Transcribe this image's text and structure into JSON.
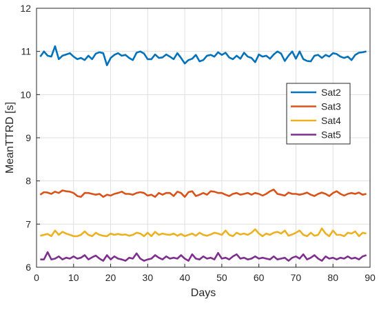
{
  "chart_data": {
    "type": "line",
    "xlabel": "Days",
    "ylabel": "MeanTTRD [s]",
    "xlim": [
      0,
      90
    ],
    "ylim": [
      6,
      12
    ],
    "xticks": [
      0,
      10,
      20,
      30,
      40,
      50,
      60,
      70,
      80,
      90
    ],
    "yticks": [
      6,
      7,
      8,
      9,
      10,
      11,
      12
    ],
    "grid": true,
    "legend_position": "right",
    "series": [
      {
        "name": "Sat2",
        "color": "#0072BD",
        "x": [
          1,
          2,
          3,
          4,
          5,
          6,
          7,
          8,
          9,
          10,
          11,
          12,
          13,
          14,
          15,
          16,
          17,
          18,
          19,
          20,
          21,
          22,
          23,
          24,
          25,
          26,
          27,
          28,
          29,
          30,
          31,
          32,
          33,
          34,
          35,
          36,
          37,
          38,
          39,
          40,
          41,
          42,
          43,
          44,
          45,
          46,
          47,
          48,
          49,
          50,
          51,
          52,
          53,
          54,
          55,
          56,
          57,
          58,
          59,
          60,
          61,
          62,
          63,
          64,
          65,
          66,
          67,
          68,
          69,
          70,
          71,
          72,
          73,
          74,
          75,
          76,
          77,
          78,
          79,
          80,
          81,
          82,
          83,
          84,
          85,
          86,
          87,
          88,
          89
        ],
        "values": [
          10.88,
          11.0,
          10.9,
          10.88,
          11.12,
          10.82,
          10.9,
          10.93,
          10.96,
          10.88,
          10.82,
          10.85,
          10.8,
          10.9,
          10.82,
          10.95,
          10.98,
          10.96,
          10.68,
          10.85,
          10.92,
          10.96,
          10.9,
          10.92,
          10.85,
          10.8,
          10.97,
          11.0,
          10.95,
          10.82,
          10.82,
          10.93,
          10.85,
          10.86,
          10.93,
          10.88,
          10.82,
          10.96,
          10.85,
          10.72,
          10.8,
          10.83,
          10.92,
          10.77,
          10.8,
          10.9,
          10.92,
          10.88,
          10.98,
          10.92,
          10.97,
          10.86,
          10.82,
          10.9,
          10.83,
          10.97,
          10.88,
          10.85,
          10.75,
          10.93,
          10.88,
          10.9,
          10.83,
          10.93,
          11.0,
          10.95,
          10.78,
          10.9,
          11.0,
          10.83,
          11.0,
          10.82,
          10.78,
          10.77,
          10.9,
          10.92,
          10.85,
          10.92,
          10.88,
          10.96,
          10.94,
          10.88,
          10.85,
          10.88,
          10.8,
          10.92,
          10.97,
          10.98,
          11.0
        ]
      },
      {
        "name": "Sat3",
        "color": "#D95319",
        "x": [
          1,
          2,
          3,
          4,
          5,
          6,
          7,
          8,
          9,
          10,
          11,
          12,
          13,
          14,
          15,
          16,
          17,
          18,
          19,
          20,
          21,
          22,
          23,
          24,
          25,
          26,
          27,
          28,
          29,
          30,
          31,
          32,
          33,
          34,
          35,
          36,
          37,
          38,
          39,
          40,
          41,
          42,
          43,
          44,
          45,
          46,
          47,
          48,
          49,
          50,
          51,
          52,
          53,
          54,
          55,
          56,
          57,
          58,
          59,
          60,
          61,
          62,
          63,
          64,
          65,
          66,
          67,
          68,
          69,
          70,
          71,
          72,
          73,
          74,
          75,
          76,
          77,
          78,
          79,
          80,
          81,
          82,
          83,
          84,
          85,
          86,
          87,
          88,
          89
        ],
        "values": [
          7.68,
          7.74,
          7.73,
          7.7,
          7.75,
          7.72,
          7.78,
          7.76,
          7.75,
          7.72,
          7.65,
          7.63,
          7.72,
          7.72,
          7.7,
          7.68,
          7.7,
          7.63,
          7.68,
          7.66,
          7.7,
          7.72,
          7.75,
          7.7,
          7.7,
          7.68,
          7.72,
          7.74,
          7.72,
          7.66,
          7.68,
          7.63,
          7.72,
          7.68,
          7.72,
          7.72,
          7.65,
          7.75,
          7.72,
          7.63,
          7.74,
          7.76,
          7.65,
          7.68,
          7.72,
          7.68,
          7.76,
          7.75,
          7.72,
          7.72,
          7.68,
          7.65,
          7.7,
          7.72,
          7.68,
          7.7,
          7.72,
          7.68,
          7.72,
          7.7,
          7.66,
          7.7,
          7.76,
          7.8,
          7.7,
          7.68,
          7.66,
          7.73,
          7.7,
          7.7,
          7.68,
          7.7,
          7.73,
          7.68,
          7.65,
          7.7,
          7.73,
          7.7,
          7.65,
          7.72,
          7.76,
          7.7,
          7.66,
          7.7,
          7.72,
          7.7,
          7.73,
          7.68,
          7.7
        ]
      },
      {
        "name": "Sat4",
        "color": "#EDB120",
        "x": [
          1,
          2,
          3,
          4,
          5,
          6,
          7,
          8,
          9,
          10,
          11,
          12,
          13,
          14,
          15,
          16,
          17,
          18,
          19,
          20,
          21,
          22,
          23,
          24,
          25,
          26,
          27,
          28,
          29,
          30,
          31,
          32,
          33,
          34,
          35,
          36,
          37,
          38,
          39,
          40,
          41,
          42,
          43,
          44,
          45,
          46,
          47,
          48,
          49,
          50,
          51,
          52,
          53,
          54,
          55,
          56,
          57,
          58,
          59,
          60,
          61,
          62,
          63,
          64,
          65,
          66,
          67,
          68,
          69,
          70,
          71,
          72,
          73,
          74,
          75,
          76,
          77,
          78,
          79,
          80,
          81,
          82,
          83,
          84,
          85,
          86,
          87,
          88,
          89
        ],
        "values": [
          6.73,
          6.75,
          6.77,
          6.72,
          6.85,
          6.75,
          6.82,
          6.78,
          6.75,
          6.72,
          6.72,
          6.75,
          6.83,
          6.75,
          6.72,
          6.8,
          6.75,
          6.73,
          6.72,
          6.78,
          6.75,
          6.77,
          6.75,
          6.76,
          6.73,
          6.75,
          6.8,
          6.78,
          6.72,
          6.8,
          6.72,
          6.82,
          6.75,
          6.78,
          6.76,
          6.75,
          6.78,
          6.73,
          6.77,
          6.72,
          6.75,
          6.78,
          6.73,
          6.8,
          6.75,
          6.73,
          6.76,
          6.8,
          6.78,
          6.75,
          6.85,
          6.75,
          6.72,
          6.8,
          6.76,
          6.78,
          6.75,
          6.8,
          6.88,
          6.78,
          6.72,
          6.78,
          6.75,
          6.8,
          6.82,
          6.78,
          6.85,
          6.73,
          6.76,
          6.8,
          6.85,
          6.75,
          6.72,
          6.8,
          6.73,
          6.75,
          6.9,
          6.78,
          6.72,
          6.85,
          6.75,
          6.75,
          6.72,
          6.8,
          6.78,
          6.83,
          6.72,
          6.8,
          6.78
        ]
      },
      {
        "name": "Sat5",
        "color": "#7E2F8E",
        "x": [
          1,
          2,
          3,
          4,
          5,
          6,
          7,
          8,
          9,
          10,
          11,
          12,
          13,
          14,
          15,
          16,
          17,
          18,
          19,
          20,
          21,
          22,
          23,
          24,
          25,
          26,
          27,
          28,
          29,
          30,
          31,
          32,
          33,
          34,
          35,
          36,
          37,
          38,
          39,
          40,
          41,
          42,
          43,
          44,
          45,
          46,
          47,
          48,
          49,
          50,
          51,
          52,
          53,
          54,
          55,
          56,
          57,
          58,
          59,
          60,
          61,
          62,
          63,
          64,
          65,
          66,
          67,
          68,
          69,
          70,
          71,
          72,
          73,
          74,
          75,
          76,
          77,
          78,
          79,
          80,
          81,
          82,
          83,
          84,
          85,
          86,
          87,
          88,
          89
        ],
        "values": [
          6.18,
          6.18,
          6.35,
          6.18,
          6.2,
          6.25,
          6.18,
          6.22,
          6.2,
          6.25,
          6.2,
          6.22,
          6.28,
          6.18,
          6.23,
          6.27,
          6.2,
          6.15,
          6.28,
          6.18,
          6.25,
          6.2,
          6.18,
          6.15,
          6.22,
          6.2,
          6.32,
          6.2,
          6.15,
          6.18,
          6.2,
          6.28,
          6.22,
          6.18,
          6.25,
          6.2,
          6.22,
          6.2,
          6.28,
          6.2,
          6.15,
          6.3,
          6.2,
          6.18,
          6.25,
          6.2,
          6.22,
          6.18,
          6.33,
          6.2,
          6.22,
          6.18,
          6.25,
          6.3,
          6.2,
          6.22,
          6.18,
          6.2,
          6.25,
          6.2,
          6.22,
          6.2,
          6.18,
          6.25,
          6.18,
          6.2,
          6.22,
          6.15,
          6.22,
          6.25,
          6.2,
          6.3,
          6.18,
          6.22,
          6.28,
          6.2,
          6.15,
          6.25,
          6.2,
          6.22,
          6.18,
          6.22,
          6.2,
          6.25,
          6.2,
          6.22,
          6.18,
          6.25,
          6.28
        ]
      }
    ]
  }
}
